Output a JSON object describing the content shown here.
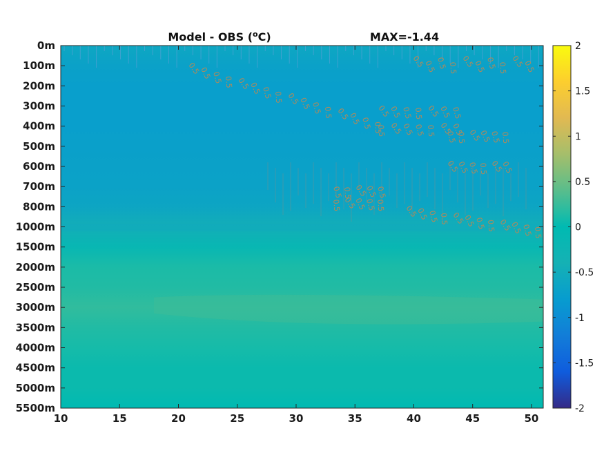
{
  "chart_data": {
    "type": "heatmap",
    "title_prefix": "Model - OBS (",
    "title_sup": "o",
    "title_suffix": "C)",
    "max_label": "MAX=-1.44",
    "x_ticks": [
      "10",
      "15",
      "20",
      "25",
      "30",
      "35",
      "40",
      "45",
      "50"
    ],
    "x_range": [
      10,
      51
    ],
    "y_ticks": [
      "0m",
      "100m",
      "200m",
      "300m",
      "400m",
      "500m",
      "600m",
      "700m",
      "800m",
      "1000m",
      "1500m",
      "2000m",
      "2500m",
      "3000m",
      "3500m",
      "4000m",
      "4500m",
      "5000m",
      "5500m"
    ],
    "colorbar": {
      "ticks": [
        "2",
        "1.5",
        "1",
        "0.5",
        "0",
        "-0.5",
        "-1",
        "-1.5",
        "-2"
      ],
      "range": [
        -2,
        2
      ],
      "colormap": "parula"
    },
    "field_levels": [
      {
        "depth": "0m",
        "value": -0.6
      },
      {
        "depth": "100m",
        "value": -0.7
      },
      {
        "depth": "200m",
        "value": -0.75
      },
      {
        "depth": "300m",
        "value": -0.75
      },
      {
        "depth": "400m",
        "value": -0.75
      },
      {
        "depth": "500m",
        "value": -0.72
      },
      {
        "depth": "600m",
        "value": -0.7
      },
      {
        "depth": "700m",
        "value": -0.68
      },
      {
        "depth": "800m",
        "value": -0.62
      },
      {
        "depth": "1000m",
        "value": -0.45
      },
      {
        "depth": "1500m",
        "value": -0.15
      },
      {
        "depth": "2000m",
        "value": 0.12
      },
      {
        "depth": "2500m",
        "value": 0.15
      },
      {
        "depth": "3000m",
        "value": 0.22
      },
      {
        "depth": "3500m",
        "value": 0.15
      },
      {
        "depth": "4000m",
        "value": 0.1
      },
      {
        "depth": "4500m",
        "value": 0.05
      },
      {
        "depth": "5000m",
        "value": 0.05
      },
      {
        "depth": "5500m",
        "value": 0.0
      }
    ],
    "contour_labels": [
      "0.5"
    ],
    "grid": false,
    "legend": "colorbar-right"
  }
}
